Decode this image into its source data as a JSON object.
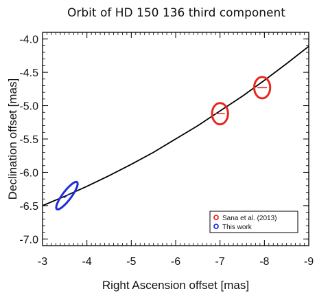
{
  "chart_data": {
    "type": "scatter",
    "title": "Orbit of HD 150 136 third component",
    "xlabel": "Right Ascension offset [mas]",
    "ylabel": "Declination offset [mas]",
    "xlim": [
      -3,
      -9
    ],
    "ylim": [
      -7.1,
      -3.9
    ],
    "x_axis_reversed": true,
    "x_ticks": [
      -3,
      -4,
      -5,
      -6,
      -7,
      -8,
      -9
    ],
    "y_ticks": [
      -4.0,
      -4.5,
      -5.0,
      -5.5,
      -6.0,
      -6.5,
      -7.0
    ],
    "x_tick_labels": [
      "-3",
      "-4",
      "-5",
      "-6",
      "-7",
      "-8",
      "-9"
    ],
    "y_tick_labels": [
      "-4.0",
      "-4.5",
      "-5.0",
      "-5.5",
      "-6.0",
      "-6.5",
      "-7.0"
    ],
    "grid": false,
    "legend_position": "bottom-right",
    "orbit_curve": {
      "color": "#000000",
      "x": [
        -3.0,
        -3.5,
        -4.0,
        -4.5,
        -5.0,
        -5.5,
        -6.0,
        -6.5,
        -7.0,
        -7.5,
        -8.0,
        -8.5,
        -9.0
      ],
      "y": [
        -6.5,
        -6.36,
        -6.21,
        -6.05,
        -5.88,
        -5.7,
        -5.5,
        -5.3,
        -5.08,
        -4.86,
        -4.62,
        -4.37,
        -4.11
      ]
    },
    "series": [
      {
        "name": "Sana et al. (2013)",
        "color": "#e8261c",
        "points": [
          {
            "x": -7.0,
            "y": -5.12,
            "err_x": 0.18,
            "err_y": 0.16
          },
          {
            "x": -7.95,
            "y": -4.73,
            "err_x": 0.18,
            "err_y": 0.16
          }
        ]
      },
      {
        "name": "This work",
        "color": "#1e2fd8",
        "points": [
          {
            "x": -3.55,
            "y": -6.35,
            "err_x": 0.3,
            "err_y": 0.23,
            "tilted": true
          }
        ]
      }
    ]
  }
}
